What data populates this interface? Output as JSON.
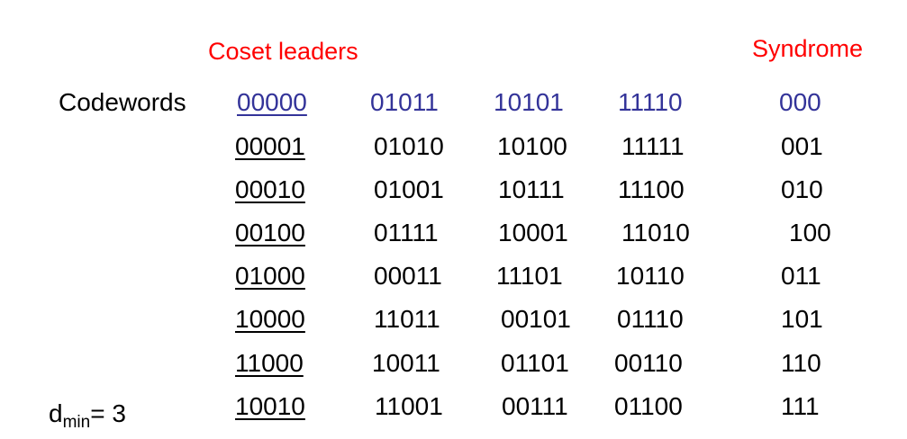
{
  "headers": {
    "coset_leaders": "Coset leaders",
    "syndrome": "Syndrome"
  },
  "row_label": "Codewords",
  "dmin": {
    "symbol": "d",
    "subscript": "min",
    "suffix": "= 3"
  },
  "rows": [
    {
      "leader": "00000",
      "cosets": [
        "01011",
        "10101",
        "11110"
      ],
      "syndrome": "000"
    },
    {
      "leader": "00001",
      "cosets": [
        "01010",
        "10100",
        "11111"
      ],
      "syndrome": "001"
    },
    {
      "leader": "00010",
      "cosets": [
        "01001",
        "10111",
        "11100"
      ],
      "syndrome": "010"
    },
    {
      "leader": "00100",
      "cosets": [
        "01111",
        "10001",
        "11010"
      ],
      "syndrome": "100"
    },
    {
      "leader": "01000",
      "cosets": [
        "00011",
        "11101",
        "10110"
      ],
      "syndrome": "011"
    },
    {
      "leader": "10000",
      "cosets": [
        "11011",
        "00101",
        "01110"
      ],
      "syndrome": "101"
    },
    {
      "leader": "11000",
      "cosets": [
        "10011",
        "01101",
        "00110"
      ],
      "syndrome": "110"
    },
    {
      "leader": "10010",
      "cosets": [
        "11001",
        "00111",
        "01100"
      ],
      "syndrome": "111"
    }
  ],
  "colors": {
    "header": "#ff0000",
    "codeword_row": "#333399",
    "text": "#000000"
  }
}
